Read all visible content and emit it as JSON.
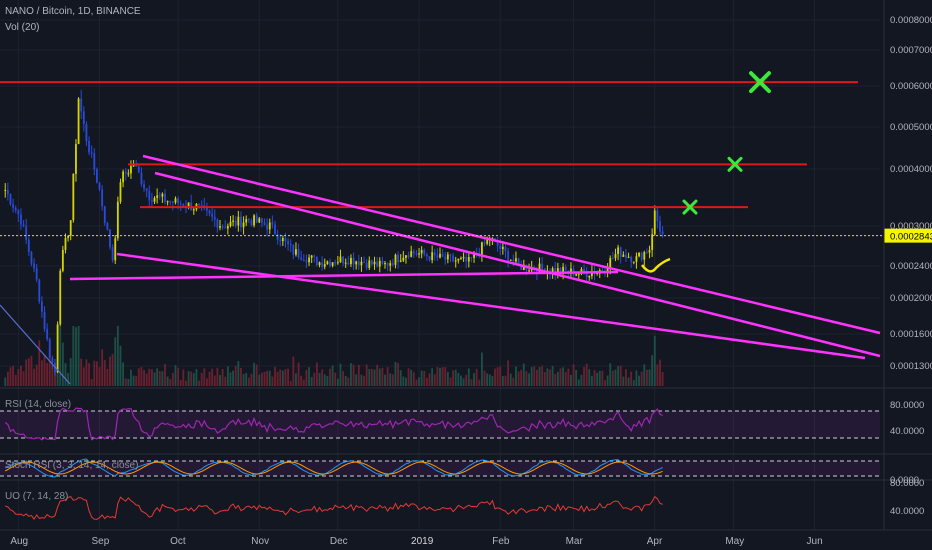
{
  "header": {
    "title": "NANO / Bitcoin, 1D, BINANCE",
    "volume_label": "Vol (20)"
  },
  "panes": {
    "rsi": {
      "label": "RSI (14, close)",
      "ticks": [
        "80.0000",
        "40.0000"
      ],
      "line_color": "#9c27b0"
    },
    "stoch": {
      "label": "Stoch RSI (3, 3, 14, 14, close)",
      "ticks": [
        "0.0000"
      ],
      "k_color": "#2196f3",
      "d_color": "#ff9800"
    },
    "uo": {
      "label": "UO (7, 14, 28)",
      "ticks": [
        "80.0000",
        "40.0000"
      ],
      "line_color": "#e53935"
    }
  },
  "colors": {
    "background": "#131722",
    "up_candle": "#d4d400",
    "down_candle": "#2a4bd7",
    "trendline": "#ff33ff",
    "resistance": "#e01818",
    "target_mark": "#3ce83c",
    "price_line": "#e6e600"
  },
  "chart_data": {
    "type": "candlestick",
    "symbol": "NANO / Bitcoin",
    "interval": "1D",
    "exchange": "BINANCE",
    "x_labels": [
      "Aug",
      "Sep",
      "Oct",
      "Nov",
      "Dec",
      "2019",
      "Feb",
      "Mar",
      "Apr",
      "May",
      "Jun"
    ],
    "y_ticks": [
      "0.0008000",
      "0.0007000",
      "0.0006000",
      "0.0005000",
      "0.0004000",
      "0.0003000",
      "0.0002400",
      "0.0002000",
      "0.0001600",
      "0.0001300"
    ],
    "last_price": "0.0002843",
    "y_scale": "log",
    "price_path": [
      [
        "2018-07-27",
        0.00036
      ],
      [
        "2018-08-02",
        0.00031
      ],
      [
        "2018-08-08",
        0.00022
      ],
      [
        "2018-08-13",
        0.00014
      ],
      [
        "2018-08-15",
        0.000125
      ],
      [
        "2018-08-17",
        0.00024
      ],
      [
        "2018-08-21",
        0.00031
      ],
      [
        "2018-08-24",
        0.00057
      ],
      [
        "2018-08-27",
        0.00047
      ],
      [
        "2018-09-01",
        0.00036
      ],
      [
        "2018-09-06",
        0.00025
      ],
      [
        "2018-09-09",
        0.00038
      ],
      [
        "2018-09-14",
        0.00041
      ],
      [
        "2018-09-20",
        0.00035
      ],
      [
        "2018-09-28",
        0.00034
      ],
      [
        "2018-10-08",
        0.00033
      ],
      [
        "2018-10-18",
        0.0003
      ],
      [
        "2018-10-28",
        0.00031
      ],
      [
        "2018-11-05",
        0.0003
      ],
      [
        "2018-11-14",
        0.00026
      ],
      [
        "2018-11-24",
        0.000245
      ],
      [
        "2018-12-05",
        0.00025
      ],
      [
        "2018-12-18",
        0.00024
      ],
      [
        "2018-12-28",
        0.00026
      ],
      [
        "2019-01-10",
        0.00025
      ],
      [
        "2019-01-20",
        0.000245
      ],
      [
        "2019-01-28",
        0.00028
      ],
      [
        "2019-02-08",
        0.00024
      ],
      [
        "2019-02-20",
        0.000235
      ],
      [
        "2019-03-05",
        0.00023
      ],
      [
        "2019-03-12",
        0.000235
      ],
      [
        "2019-03-18",
        0.00026
      ],
      [
        "2019-03-25",
        0.00025
      ],
      [
        "2019-03-30",
        0.000265
      ],
      [
        "2019-04-01",
        0.00032
      ],
      [
        "2019-04-04",
        0.0002843
      ]
    ],
    "horizontal_levels": [
      0.00061,
      0.00041,
      0.00033
    ],
    "annotations": [
      "target markers at the three horizontal levels",
      "dotted line at last price"
    ]
  }
}
